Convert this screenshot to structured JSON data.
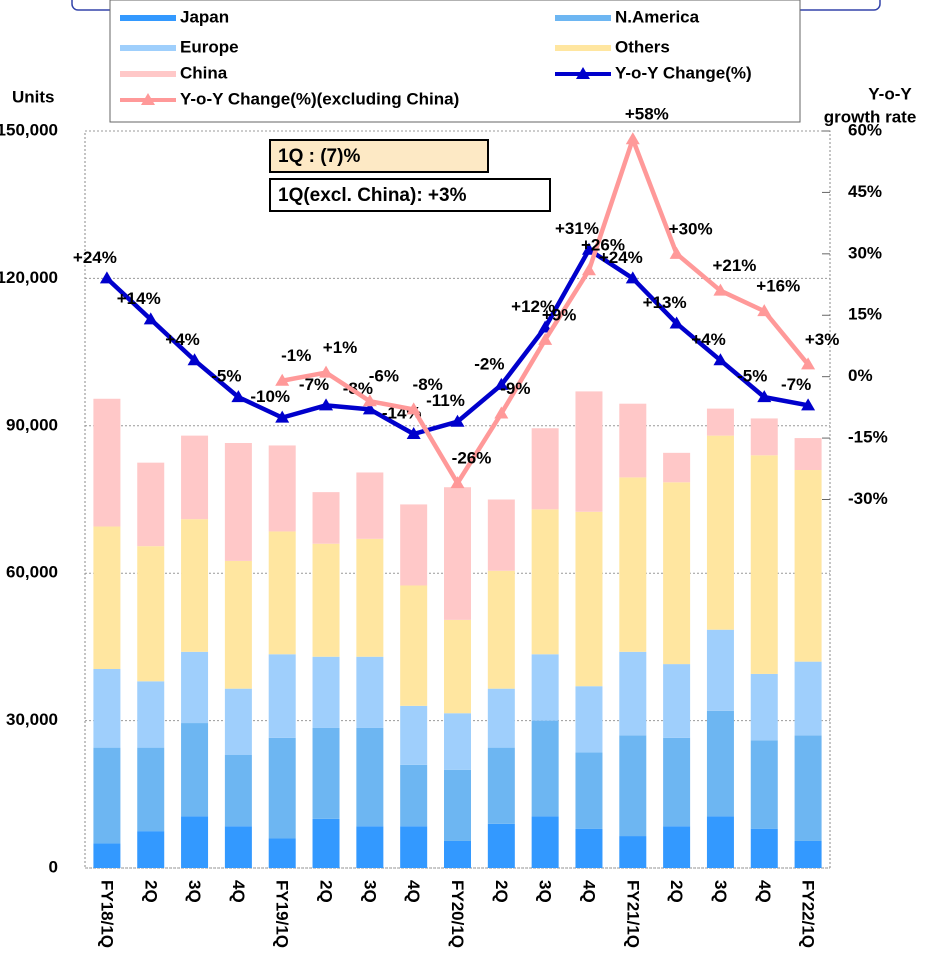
{
  "chart_data": {
    "type": "bar",
    "stacked": true,
    "y_label": "Units",
    "y2_label": [
      "Y-o-Y",
      "growth rate"
    ],
    "annotations": [
      "1Q : (7)%",
      "1Q(excl. China): +3%"
    ],
    "categories": [
      "FY18/1Q",
      "2Q",
      "3Q",
      "4Q",
      "FY19/1Q",
      "2Q",
      "3Q",
      "4Q",
      "FY20/1Q",
      "2Q",
      "3Q",
      "4Q",
      "FY21/1Q",
      "2Q",
      "3Q",
      "4Q",
      "FY22/1Q"
    ],
    "ylim": [
      0,
      150000
    ],
    "yticks": [
      {
        "value": 0,
        "label": "0"
      },
      {
        "value": 30000,
        "label": "30,000"
      },
      {
        "value": 60000,
        "label": "60,000"
      },
      {
        "value": 90000,
        "label": "90,000"
      },
      {
        "value": 120000,
        "label": "120,000"
      },
      {
        "value": 150000,
        "label": "150,000"
      }
    ],
    "y2lim": [
      -120,
      60
    ],
    "y2ticks": [
      {
        "value": 60,
        "label": "60%"
      },
      {
        "value": 45,
        "label": "45%"
      },
      {
        "value": 30,
        "label": "30%"
      },
      {
        "value": 15,
        "label": "15%"
      },
      {
        "value": 0,
        "label": "0%"
      },
      {
        "value": -15,
        "label": "-15%"
      },
      {
        "value": -30,
        "label": "-30%"
      }
    ],
    "grid": true,
    "series": [
      {
        "name": "Japan",
        "color": "#3399ff",
        "values": [
          5000,
          7500,
          10500,
          8500,
          6000,
          10000,
          8500,
          8500,
          5500,
          9000,
          10500,
          8000,
          6500,
          8500,
          10500,
          8000,
          5500
        ]
      },
      {
        "name": "N.America",
        "color": "#6db6f2",
        "values": [
          19500,
          17000,
          19000,
          14500,
          20500,
          18500,
          20000,
          12500,
          14500,
          15500,
          19500,
          15500,
          20500,
          18000,
          21500,
          18000,
          21500
        ]
      },
      {
        "name": "Europe",
        "color": "#9fcffc",
        "values": [
          16000,
          13500,
          14500,
          13500,
          17000,
          14500,
          14500,
          12000,
          11500,
          12000,
          13500,
          13500,
          17000,
          15000,
          16500,
          13500,
          15000
        ]
      },
      {
        "name": "Others",
        "color": "#ffe6a0",
        "values": [
          29000,
          27500,
          27000,
          26000,
          25000,
          23000,
          24000,
          24500,
          19000,
          24000,
          29500,
          35500,
          35500,
          37000,
          39500,
          44500,
          39000
        ]
      },
      {
        "name": "China",
        "color": "#ffc8c8",
        "values": [
          26000,
          17000,
          17000,
          24000,
          17500,
          10500,
          13500,
          16500,
          27000,
          14500,
          16500,
          24500,
          15000,
          6000,
          5500,
          7500,
          6500
        ]
      },
      {
        "name": "Y-o-Y Change(%)",
        "type": "line",
        "axis": "y2",
        "color": "#0000cc",
        "values": [
          24,
          14,
          4,
          -5,
          -10,
          -7,
          -8,
          -14,
          -11,
          -2,
          12,
          31,
          24,
          13,
          4,
          -5,
          -7
        ],
        "value_labels": [
          "+24%",
          "+14%",
          "+4%",
          "-5%",
          "-10%",
          "-7%",
          "-8%",
          "-14%",
          "-11%",
          "-2%",
          "+12%",
          "+31%",
          "+24%",
          "+13%",
          "+4%",
          "-5%",
          "-7%"
        ]
      },
      {
        "name": "Y-o-Y Change(%)(excluding China)",
        "type": "line",
        "axis": "y2",
        "color": "#ff9999",
        "values": [
          null,
          null,
          null,
          null,
          -1,
          1,
          -6,
          -8,
          -26,
          -9,
          9,
          26,
          58,
          30,
          21,
          16,
          3
        ],
        "value_labels": [
          null,
          null,
          null,
          null,
          "-1%",
          "+1%",
          "-6%",
          "-8%",
          "-26%",
          "-9%",
          "+9%",
          "+26%",
          "+58%",
          "+30%",
          "+21%",
          "+16%",
          "+3%"
        ]
      }
    ]
  }
}
